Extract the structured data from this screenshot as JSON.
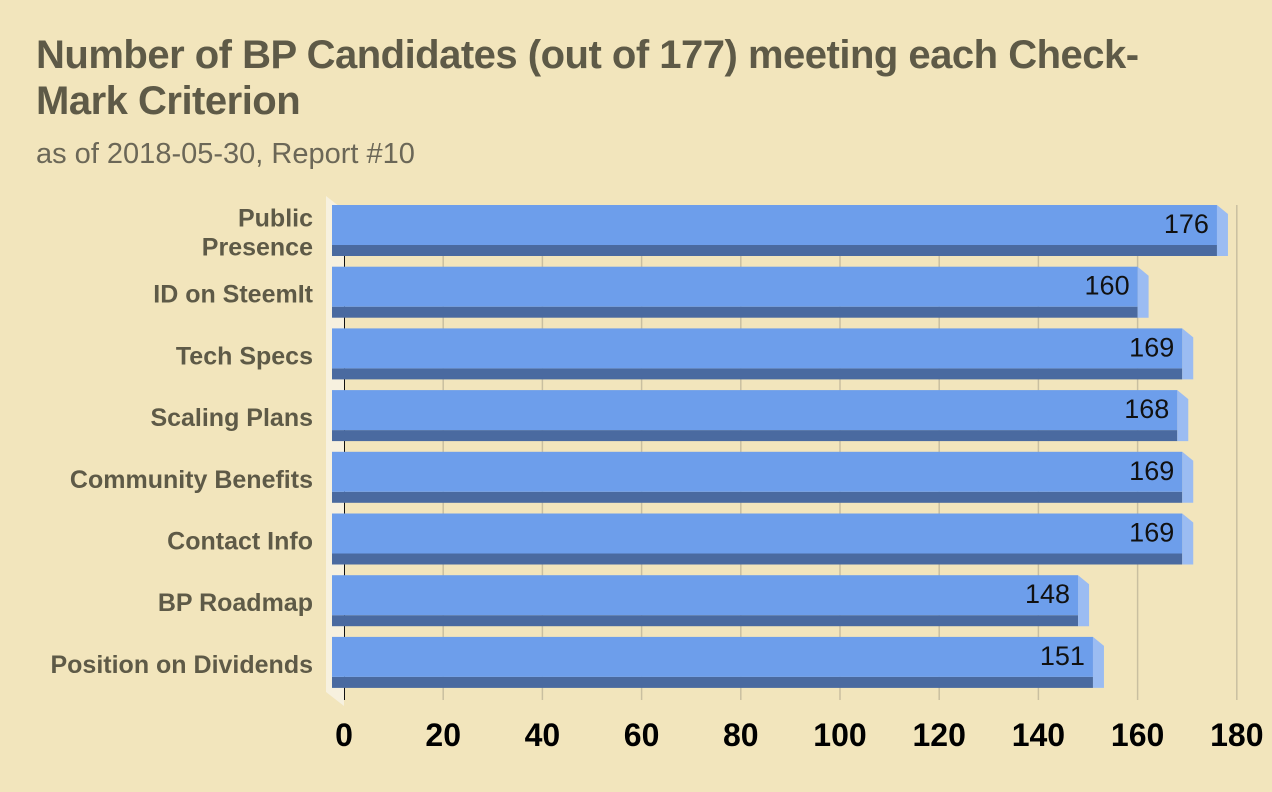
{
  "chart": {
    "title": "Number of BP Candidates (out of 177) meeting each Check-Mark Criterion",
    "subtitle": "as of 2018-05-30, Report #10"
  },
  "colors": {
    "background": "#f2e5bc",
    "bar_face": "#6d9eeb",
    "bar_bottom": "#4a6aa0",
    "bar_side": "#9bbcf2",
    "gridline": "#c9bfa0",
    "title_text": "#5e5a47"
  },
  "chart_data": {
    "type": "bar",
    "orientation": "horizontal",
    "style": "3d",
    "title": "Number of BP Candidates (out of 177) meeting each Check-Mark Criterion",
    "subtitle": "as of 2018-05-30, Report #10",
    "xlabel": "",
    "ylabel": "",
    "categories": [
      [
        "Public",
        "Presence"
      ],
      [
        "ID on SteemIt"
      ],
      [
        "Tech Specs"
      ],
      [
        "Scaling Plans"
      ],
      [
        "Community Benefits"
      ],
      [
        "Contact Info"
      ],
      [
        "BP Roadmap"
      ],
      [
        "Position on Dividends"
      ]
    ],
    "values": [
      176,
      160,
      169,
      168,
      169,
      169,
      148,
      151
    ],
    "xlim": [
      0,
      180
    ],
    "x_ticks": [
      0,
      20,
      40,
      60,
      80,
      100,
      120,
      140,
      160,
      180
    ],
    "grid": "vertical",
    "data_labels": true
  }
}
